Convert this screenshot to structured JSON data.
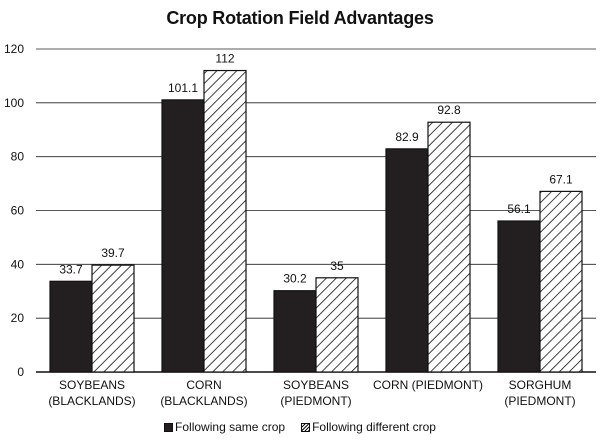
{
  "chart_data": {
    "type": "bar",
    "title": "Crop Rotation Field Advantages",
    "categories": [
      [
        "SOYBEANS",
        "(BLACKLANDS)"
      ],
      [
        "CORN",
        "(BLACKLANDS)"
      ],
      [
        "SOYBEANS",
        "(PIEDMONT)"
      ],
      [
        "CORN (PIEDMONT)",
        ""
      ],
      [
        "SORGHUM",
        "(PIEDMONT)"
      ]
    ],
    "series": [
      {
        "name": "Following same crop",
        "style": "solid",
        "color": "#231f20",
        "values": [
          33.7,
          101.1,
          30.2,
          82.9,
          56.1
        ],
        "labels": [
          "33.7",
          "101.1",
          "30.2",
          "82.9",
          "56.1"
        ]
      },
      {
        "name": "Following different crop",
        "style": "hatched",
        "color": "#ffffff",
        "values": [
          39.7,
          112,
          35,
          92.8,
          67.1
        ],
        "labels": [
          "39.7",
          "112",
          "35",
          "92.8",
          "67.1"
        ]
      }
    ],
    "ylim": [
      0,
      120
    ],
    "yticks": [
      0,
      20,
      40,
      60,
      80,
      100,
      120
    ],
    "xlabel": "",
    "ylabel": "",
    "grid": true,
    "legend_position": "bottom-center"
  }
}
